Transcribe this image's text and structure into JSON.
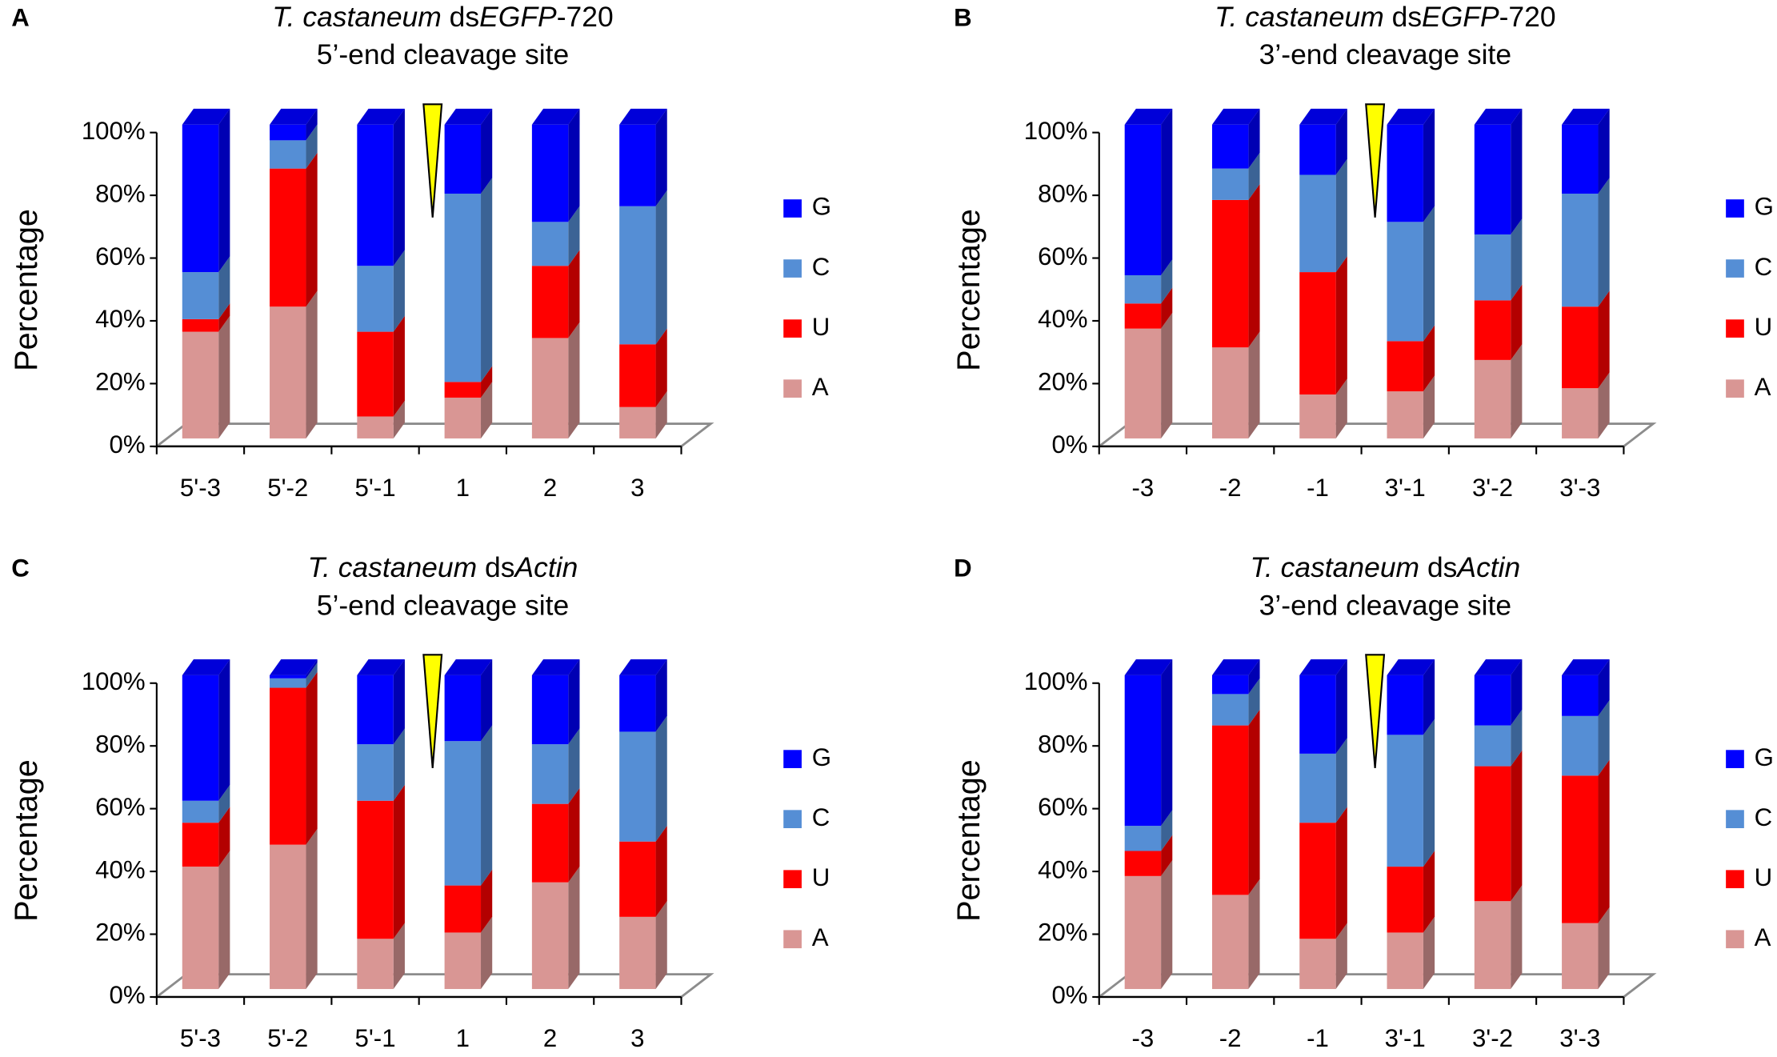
{
  "chart_data": [
    {
      "type": "bar3d",
      "panel": "A",
      "title": [
        {
          "text": "T. castaneum",
          "italic": true
        },
        {
          "text": " ds",
          "italic": false
        },
        {
          "text": "EGFP",
          "italic": true
        },
        {
          "text": "-720",
          "italic": false
        }
      ],
      "subtitle": "5’-end cleavage site",
      "ylabel": "Percentage",
      "categories": [
        "5'-3",
        "5'-2",
        "5'-1",
        "1",
        "2",
        "3"
      ],
      "series": [
        {
          "name": "A",
          "color": "#d99694",
          "values": [
            34,
            42,
            7,
            13,
            32,
            10
          ]
        },
        {
          "name": "U",
          "color": "#ff0000",
          "values": [
            4,
            44,
            27,
            5,
            23,
            20
          ]
        },
        {
          "name": "C",
          "color": "#558ed5",
          "values": [
            15,
            9,
            21,
            60,
            14,
            44
          ]
        },
        {
          "name": "G",
          "color": "#0000ff",
          "values": [
            47,
            5,
            45,
            22,
            31,
            26
          ]
        }
      ],
      "ylim": [
        0,
        100
      ],
      "yticks": [
        {
          "value": 0,
          "label": "0%"
        },
        {
          "value": 20,
          "label": "20%"
        },
        {
          "value": 40,
          "label": "40%"
        },
        {
          "value": 60,
          "label": "60%"
        },
        {
          "value": 80,
          "label": "80%"
        },
        {
          "value": 100,
          "label": "100%"
        }
      ]
    },
    {
      "type": "bar3d",
      "panel": "B",
      "title": [
        {
          "text": "T. castaneum",
          "italic": true
        },
        {
          "text": " ds",
          "italic": false
        },
        {
          "text": "EGFP",
          "italic": true
        },
        {
          "text": "-720",
          "italic": false
        }
      ],
      "subtitle": "3’-end cleavage site",
      "ylabel": "Percentage",
      "categories": [
        "-3",
        "-2",
        "-1",
        "3'-1",
        "3'-2",
        "3'-3"
      ],
      "series": [
        {
          "name": "A",
          "color": "#d99694",
          "values": [
            35,
            29,
            14,
            15,
            25,
            16
          ]
        },
        {
          "name": "U",
          "color": "#ff0000",
          "values": [
            8,
            47,
            39,
            16,
            19,
            26
          ]
        },
        {
          "name": "C",
          "color": "#558ed5",
          "values": [
            9,
            10,
            31,
            38,
            21,
            36
          ]
        },
        {
          "name": "G",
          "color": "#0000ff",
          "values": [
            48,
            14,
            16,
            31,
            35,
            22
          ]
        }
      ],
      "ylim": [
        0,
        100
      ],
      "yticks": [
        {
          "value": 0,
          "label": "0%"
        },
        {
          "value": 20,
          "label": "20%"
        },
        {
          "value": 40,
          "label": "40%"
        },
        {
          "value": 60,
          "label": "60%"
        },
        {
          "value": 80,
          "label": "80%"
        },
        {
          "value": 100,
          "label": "100%"
        }
      ]
    },
    {
      "type": "bar3d",
      "panel": "C",
      "title": [
        {
          "text": "T. castaneum",
          "italic": true
        },
        {
          "text": " ds",
          "italic": false
        },
        {
          "text": "Actin",
          "italic": true
        }
      ],
      "subtitle": "5’-end cleavage site",
      "ylabel": "Percentage",
      "categories": [
        "5'-3",
        "5'-2",
        "5'-1",
        "1",
        "2",
        "3"
      ],
      "series": [
        {
          "name": "A",
          "color": "#d99694",
          "values": [
            39,
            46,
            16,
            18,
            34,
            23
          ]
        },
        {
          "name": "U",
          "color": "#ff0000",
          "values": [
            14,
            50,
            44,
            15,
            25,
            24
          ]
        },
        {
          "name": "C",
          "color": "#558ed5",
          "values": [
            7,
            3,
            18,
            46,
            19,
            35
          ]
        },
        {
          "name": "G",
          "color": "#0000ff",
          "values": [
            40,
            1,
            22,
            21,
            22,
            18
          ]
        }
      ],
      "ylim": [
        0,
        100
      ],
      "yticks": [
        {
          "value": 0,
          "label": "0%"
        },
        {
          "value": 20,
          "label": "20%"
        },
        {
          "value": 40,
          "label": "40%"
        },
        {
          "value": 60,
          "label": "60%"
        },
        {
          "value": 80,
          "label": "80%"
        },
        {
          "value": 100,
          "label": "100%"
        }
      ]
    },
    {
      "type": "bar3d",
      "panel": "D",
      "title": [
        {
          "text": "T. castaneum",
          "italic": true
        },
        {
          "text": " ds",
          "italic": false
        },
        {
          "text": "Actin",
          "italic": true
        }
      ],
      "subtitle": "3’-end cleavage site",
      "ylabel": "Percentage",
      "categories": [
        "-3",
        "-2",
        "-1",
        "3'-1",
        "3'-2",
        "3'-3"
      ],
      "series": [
        {
          "name": "A",
          "color": "#d99694",
          "values": [
            36,
            30,
            16,
            18,
            28,
            21
          ]
        },
        {
          "name": "U",
          "color": "#ff0000",
          "values": [
            8,
            54,
            37,
            21,
            43,
            47
          ]
        },
        {
          "name": "C",
          "color": "#558ed5",
          "values": [
            8,
            10,
            22,
            42,
            13,
            19
          ]
        },
        {
          "name": "G",
          "color": "#0000ff",
          "values": [
            48,
            6,
            25,
            19,
            16,
            13
          ]
        }
      ],
      "ylim": [
        0,
        100
      ],
      "yticks": [
        {
          "value": 0,
          "label": "0%"
        },
        {
          "value": 20,
          "label": "20%"
        },
        {
          "value": 40,
          "label": "40%"
        },
        {
          "value": 60,
          "label": "60%"
        },
        {
          "value": 80,
          "label": "80%"
        },
        {
          "value": 100,
          "label": "100%"
        }
      ]
    }
  ]
}
